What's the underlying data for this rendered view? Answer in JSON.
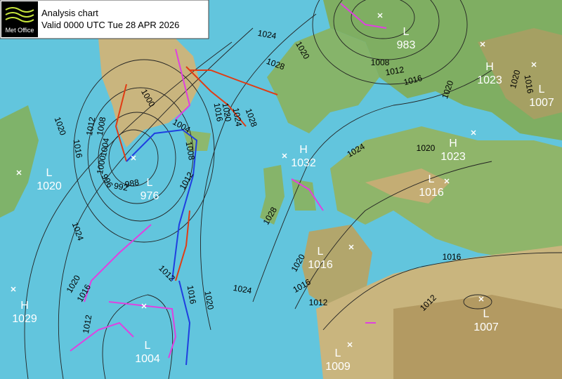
{
  "header": {
    "logo": "Met Office",
    "title": "Analysis chart",
    "valid": "Valid 0000 UTC Tue 28 APR 2026"
  },
  "pressure_centers": [
    {
      "type": "L",
      "value": 983
    },
    {
      "type": "H",
      "value": 1023
    },
    {
      "type": "L",
      "value": 1007
    },
    {
      "type": "H",
      "value": 1032
    },
    {
      "type": "H",
      "value": 1023
    },
    {
      "type": "L",
      "value": 1016
    },
    {
      "type": "L",
      "value": 1020
    },
    {
      "type": "L",
      "value": 976
    },
    {
      "type": "L",
      "value": 1016
    },
    {
      "type": "H",
      "value": 1029
    },
    {
      "type": "L",
      "value": 1004
    },
    {
      "type": "L",
      "value": 1009
    },
    {
      "type": "L",
      "value": 1007
    }
  ],
  "isobar_labels": [
    1024,
    1020,
    1028,
    1008,
    1012,
    1016,
    1020,
    1020,
    1016,
    1000,
    1004,
    1008,
    1012,
    1016,
    1020,
    1024,
    1028,
    1020,
    1016,
    1024,
    1020,
    1016,
    1012,
    1012,
    1016,
    1020,
    1024,
    1028,
    1024,
    1020,
    1020,
    1016,
    1012,
    1016,
    1012,
    1012,
    1008,
    1004,
    1000,
    996,
    992,
    988
  ]
}
